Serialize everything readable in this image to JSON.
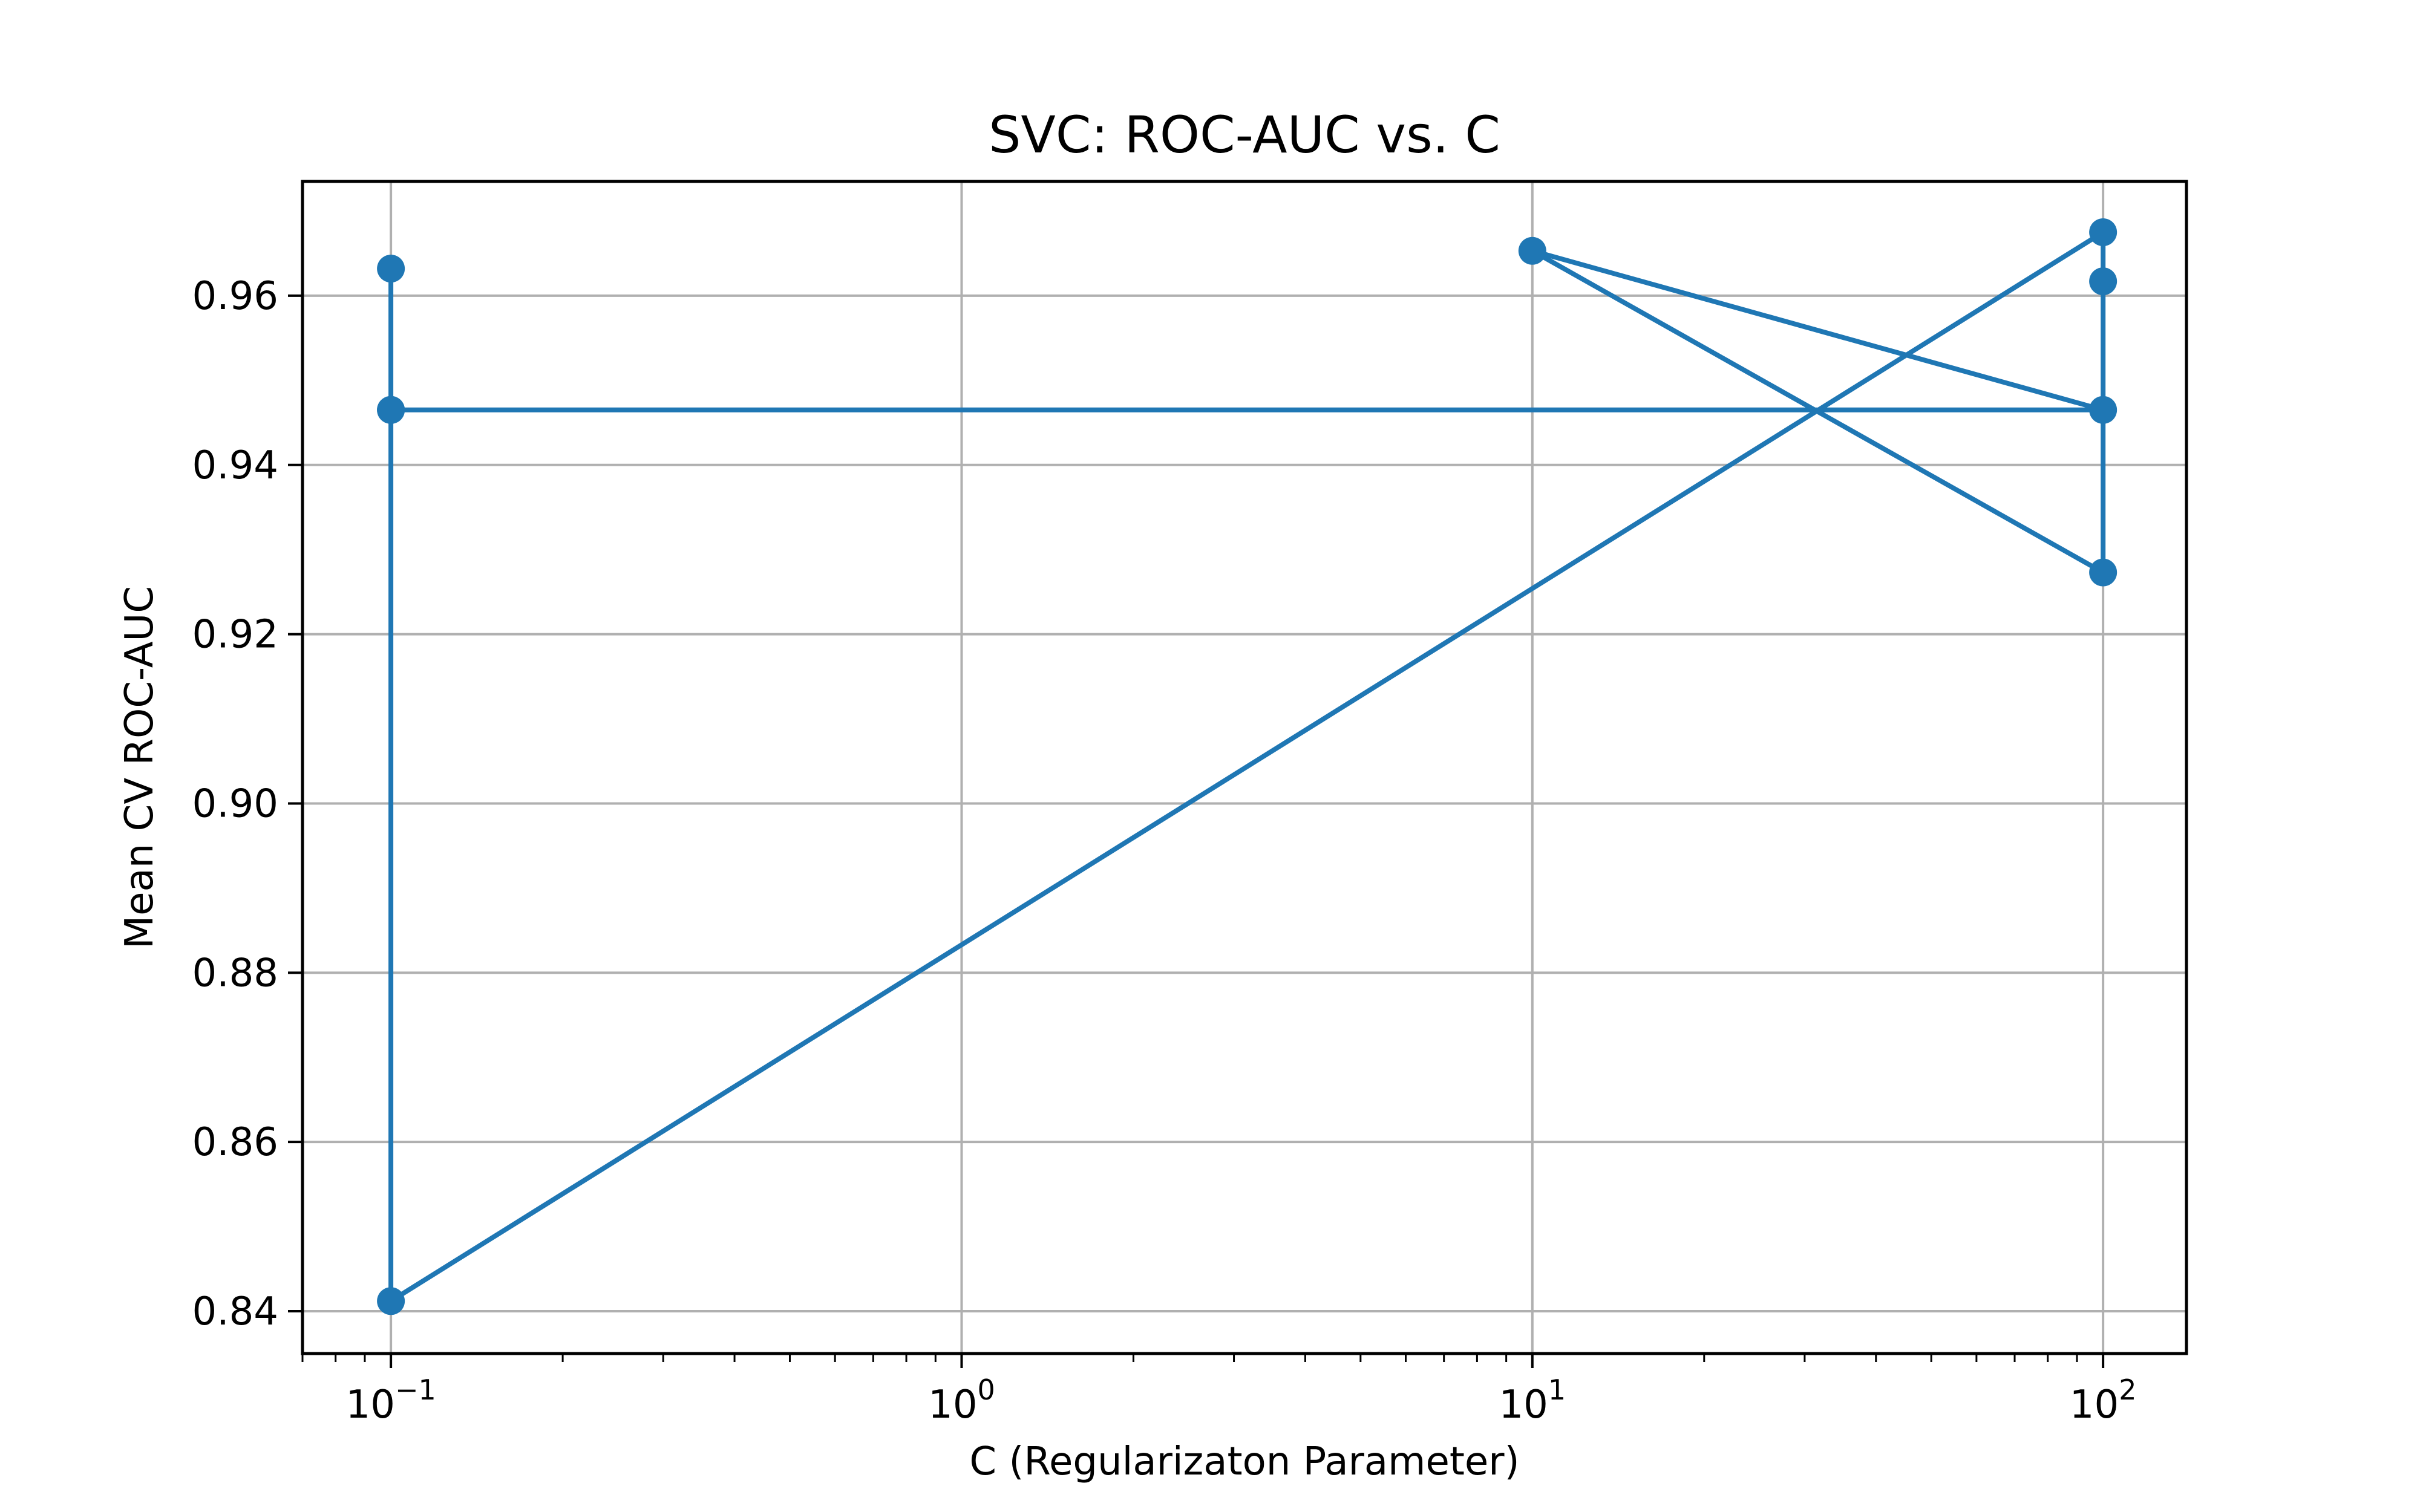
{
  "chart_data": {
    "type": "line",
    "title": "SVC: ROC-AUC vs. C",
    "xlabel": "C (Regularizaton Parameter)",
    "ylabel": "Mean CV ROC-AUC",
    "xscale": "log",
    "xlim": [
      0.07,
      140
    ],
    "ylim": [
      0.835,
      0.9735
    ],
    "x_ticks": [
      0.1,
      1,
      10,
      100
    ],
    "x_tick_labels": [
      {
        "base": "10",
        "exp": "−1"
      },
      {
        "base": "10",
        "exp": "0"
      },
      {
        "base": "10",
        "exp": "1"
      },
      {
        "base": "10",
        "exp": "2"
      }
    ],
    "y_ticks": [
      0.84,
      0.86,
      0.88,
      0.9,
      0.92,
      0.94,
      0.96
    ],
    "y_tick_labels": [
      "0.84",
      "0.86",
      "0.88",
      "0.90",
      "0.92",
      "0.94",
      "0.96"
    ],
    "grid": true,
    "legend": "none",
    "series": [
      {
        "color": "#1f77b4",
        "marker": "circle",
        "x": [
          0.1,
          0.1,
          0.1,
          100,
          100,
          100,
          10,
          100,
          0.1
        ],
        "y": [
          0.9632,
          0.9465,
          0.8412,
          0.9675,
          0.9617,
          0.9273,
          0.9653,
          0.9465,
          0.9465
        ]
      }
    ]
  }
}
